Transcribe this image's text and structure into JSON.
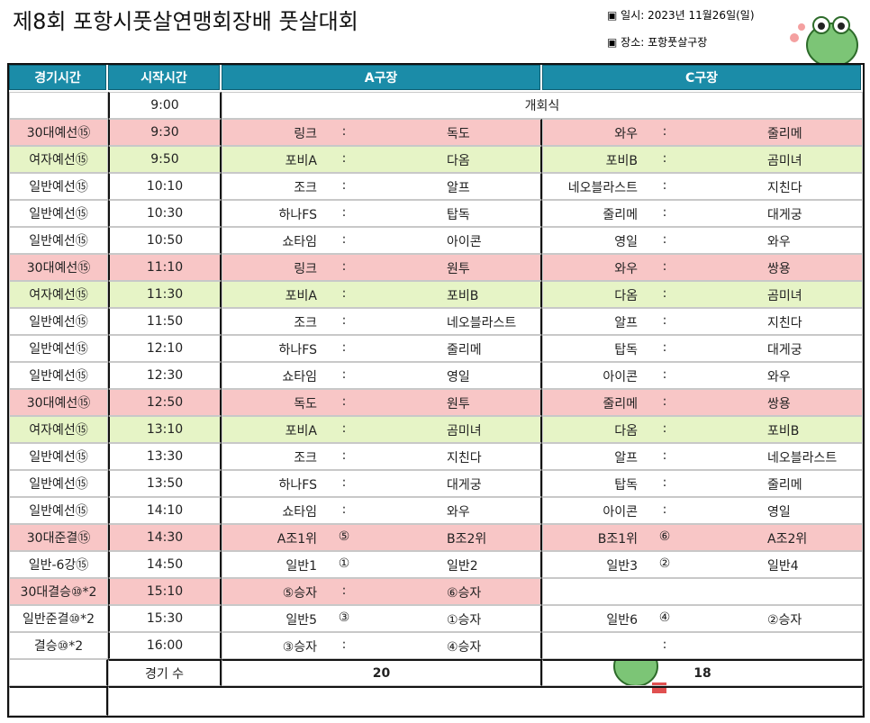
{
  "header": {
    "title": "제8회 포항시풋살연맹회장배 풋살대회",
    "date": "▣ 일시: 2023년 11월26일(일)",
    "place": "▣ 장소: 포항풋살구장"
  },
  "table": {
    "columns": [
      "경기시간",
      "시작시간",
      "A구장",
      "C구장"
    ],
    "rows": [
      {
        "time": "9:00",
        "event": "개회식"
      },
      {
        "category": "30대예선⑮",
        "time": "9:30",
        "highlight": "pink",
        "a": {
          "home": "링크",
          "sep": ":",
          "away": "독도"
        },
        "c": {
          "home": "와우",
          "sep": ":",
          "away": "줄리메"
        }
      },
      {
        "category": "여자예선⑮",
        "time": "9:50",
        "highlight": "green",
        "a": {
          "home": "포비A",
          "sep": ":",
          "away": "다옴"
        },
        "c": {
          "home": "포비B",
          "sep": ":",
          "away": "곰미녀"
        }
      },
      {
        "category": "일반예선⑮",
        "time": "10:10",
        "a": {
          "home": "조크",
          "sep": ":",
          "away": "알프"
        },
        "c": {
          "home": "네오블라스트",
          "sep": ":",
          "away": "지친다"
        }
      },
      {
        "category": "일반예선⑮",
        "time": "10:30",
        "a": {
          "home": "하나FS",
          "sep": ":",
          "away": "탑독"
        },
        "c": {
          "home": "줄리메",
          "sep": ":",
          "away": "대게궁"
        }
      },
      {
        "category": "일반예선⑮",
        "time": "10:50",
        "a": {
          "home": "쇼타임",
          "sep": ":",
          "away": "아이콘"
        },
        "c": {
          "home": "영일",
          "sep": ":",
          "away": "와우"
        }
      },
      {
        "category": "30대예선⑮",
        "time": "11:10",
        "highlight": "pink",
        "a": {
          "home": "링크",
          "sep": ":",
          "away": "원투"
        },
        "c": {
          "home": "와우",
          "sep": ":",
          "away": "쌍용"
        }
      },
      {
        "category": "여자예선⑮",
        "time": "11:30",
        "highlight": "green",
        "a": {
          "home": "포비A",
          "sep": ":",
          "away": "포비B"
        },
        "c": {
          "home": "다옴",
          "sep": ":",
          "away": "곰미녀"
        }
      },
      {
        "category": "일반예선⑮",
        "time": "11:50",
        "a": {
          "home": "조크",
          "sep": ":",
          "away": "네오블라스트"
        },
        "c": {
          "home": "알프",
          "sep": ":",
          "away": "지친다"
        }
      },
      {
        "category": "일반예선⑮",
        "time": "12:10",
        "a": {
          "home": "하나FS",
          "sep": ":",
          "away": "줄리메"
        },
        "c": {
          "home": "탑독",
          "sep": ":",
          "away": "대게궁"
        }
      },
      {
        "category": "일반예선⑮",
        "time": "12:30",
        "a": {
          "home": "쇼타임",
          "sep": ":",
          "away": "영일"
        },
        "c": {
          "home": "아이콘",
          "sep": ":",
          "away": "와우"
        }
      },
      {
        "category": "30대예선⑮",
        "time": "12:50",
        "highlight": "pink",
        "a": {
          "home": "독도",
          "sep": ":",
          "away": "원투"
        },
        "c": {
          "home": "줄리메",
          "sep": ":",
          "away": "쌍용"
        }
      },
      {
        "category": "여자예선⑮",
        "time": "13:10",
        "highlight": "green",
        "a": {
          "home": "포비A",
          "sep": ":",
          "away": "곰미녀"
        },
        "c": {
          "home": "다옴",
          "sep": ":",
          "away": "포비B"
        }
      },
      {
        "category": "일반예선⑮",
        "time": "13:30",
        "a": {
          "home": "조크",
          "sep": ":",
          "away": "지친다"
        },
        "c": {
          "home": "알프",
          "sep": ":",
          "away": "네오블라스트"
        }
      },
      {
        "category": "일반예선⑮",
        "time": "13:50",
        "a": {
          "home": "하나FS",
          "sep": ":",
          "away": "대게궁"
        },
        "c": {
          "home": "탑독",
          "sep": ":",
          "away": "줄리메"
        }
      },
      {
        "category": "일반예선⑮",
        "time": "14:10",
        "a": {
          "home": "쇼타임",
          "sep": ":",
          "away": "와우"
        },
        "c": {
          "home": "아이콘",
          "sep": ":",
          "away": "영일"
        }
      },
      {
        "category": "30대준결⑮",
        "time": "14:30",
        "highlight": "pink",
        "a": {
          "home": "A조1위",
          "sep": "⑤",
          "away": "B조2위"
        },
        "c": {
          "home": "B조1위",
          "sep": "⑥",
          "away": "A조2위"
        }
      },
      {
        "category": "일반-6강⑮",
        "time": "14:50",
        "a": {
          "home": "일반1",
          "sep": "①",
          "away": "일반2"
        },
        "c": {
          "home": "일반3",
          "sep": "②",
          "away": "일반4"
        }
      },
      {
        "category": "30대결승⑩*2",
        "time": "15:10",
        "highlight": "pink",
        "a": {
          "home": "⑤승자",
          "sep": ":",
          "away": "⑥승자"
        }
      },
      {
        "category": "일반준결⑩*2",
        "time": "15:30",
        "a": {
          "home": "일반5",
          "sep": "③",
          "away": "①승자"
        },
        "c": {
          "home": "일반6",
          "sep": "④",
          "away": "②승자"
        }
      },
      {
        "category": "결승⑩*2",
        "time": "16:00",
        "a": {
          "home": "③승자",
          "sep": ":",
          "away": "④승자"
        },
        "c": {
          "sep": ":"
        }
      }
    ],
    "footer": {
      "label": "경기 수",
      "a": "20",
      "c": "18"
    }
  }
}
